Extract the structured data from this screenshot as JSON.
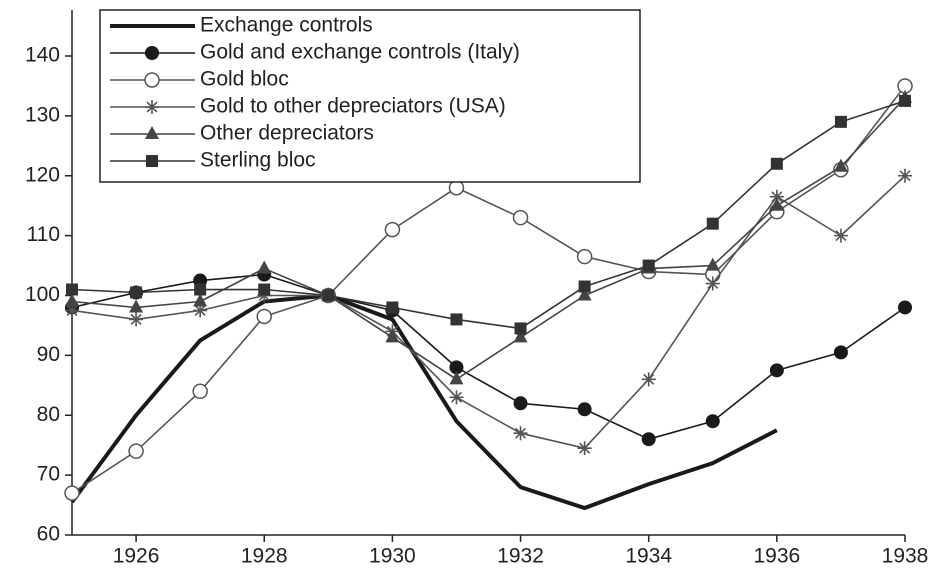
{
  "chart_data": {
    "type": "line",
    "x": [
      1925,
      1926,
      1927,
      1928,
      1929,
      1930,
      1931,
      1932,
      1933,
      1934,
      1935,
      1936,
      1937,
      1938
    ],
    "series": [
      {
        "name": "Exchange controls",
        "color": "#1a1a1a",
        "marker": "none",
        "values": [
          65.5,
          80,
          92.5,
          99,
          100,
          96,
          79,
          68,
          64.5,
          68.5,
          72,
          77.5,
          null,
          null
        ]
      },
      {
        "name": "Gold and exchange controls (Italy)",
        "color": "#1a1a1a",
        "marker": "circle-filled",
        "values": [
          98,
          100.5,
          102.5,
          103.5,
          100,
          97.5,
          88,
          82,
          81,
          76,
          79,
          87.5,
          90.5,
          98
        ]
      },
      {
        "name": "Gold bloc",
        "color": "#555555",
        "marker": "circle-open",
        "values": [
          67,
          74,
          84,
          96.5,
          100,
          111,
          118,
          113,
          106.5,
          104,
          103.5,
          114,
          121,
          135
        ]
      },
      {
        "name": "Gold to other depreciators (USA)",
        "color": "#555555",
        "marker": "star",
        "values": [
          97.5,
          96,
          97.5,
          100,
          100,
          94,
          83,
          77,
          74.5,
          86,
          102,
          116.5,
          110,
          120
        ]
      },
      {
        "name": "Other depreciators",
        "color": "#444444",
        "marker": "triangle",
        "values": [
          99,
          98,
          99,
          104.5,
          100,
          93,
          86,
          93,
          100,
          104.5,
          105,
          115,
          121.5,
          133
        ]
      },
      {
        "name": "Sterling bloc",
        "color": "#333333",
        "marker": "square",
        "values": [
          101,
          100.5,
          101,
          101,
          100,
          98,
          96,
          94.5,
          101.5,
          105,
          112,
          122,
          129,
          132.5
        ]
      }
    ],
    "xlim": [
      1925,
      1938
    ],
    "xticks": [
      1926,
      1928,
      1930,
      1932,
      1934,
      1936,
      1938
    ],
    "ylim": [
      60,
      140
    ],
    "yticks": [
      60,
      70,
      80,
      90,
      100,
      110,
      120,
      130,
      140
    ],
    "legend": "top-left"
  }
}
